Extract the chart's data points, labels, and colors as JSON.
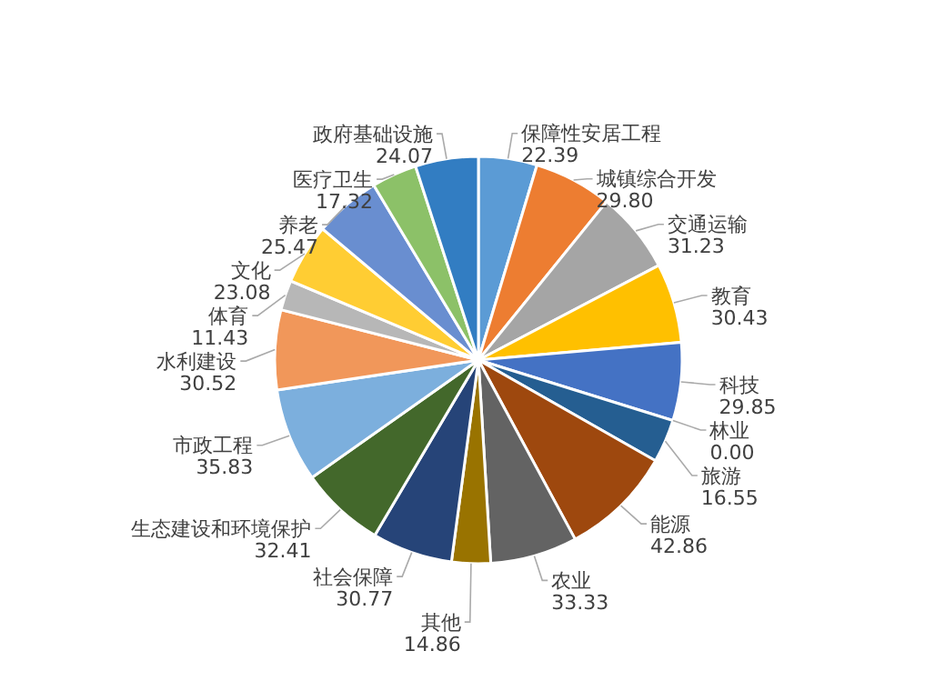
{
  "chart_data": {
    "type": "pie",
    "categories": [
      "保障性安居工程",
      "城镇综合开发",
      "交通运输",
      "教育",
      "科技",
      "林业",
      "旅游",
      "能源",
      "农业",
      "其他",
      "社会保障",
      "生态建设和环境保护",
      "市政工程",
      "水利建设",
      "体育",
      "文化",
      "养老",
      "医疗卫生",
      "政府基础设施"
    ],
    "values": [
      22.39,
      29.8,
      31.23,
      30.43,
      29.85,
      0.0,
      16.55,
      42.86,
      33.33,
      14.86,
      30.77,
      32.41,
      35.83,
      30.52,
      11.43,
      23.08,
      25.47,
      17.32,
      24.07
    ],
    "colors": [
      "#5b9bd5",
      "#ed7d31",
      "#a5a5a5",
      "#ffc000",
      "#4472c4",
      "#70ad47",
      "#255e91",
      "#9e480e",
      "#636363",
      "#997300",
      "#264478",
      "#43682b",
      "#7cafdd",
      "#f1975a",
      "#b7b7b7",
      "#ffcd33",
      "#698ed0",
      "#8cc168",
      "#327dc2"
    ],
    "value_labels": [
      "22.39",
      "29.80",
      "31.23",
      "30.43",
      "29.85",
      "0.00",
      "16.55",
      "42.86",
      "33.33",
      "14.86",
      "30.77",
      "32.41",
      "35.83",
      "30.52",
      "11.43",
      "23.08",
      "25.47",
      "17.32",
      "24.07"
    ]
  }
}
